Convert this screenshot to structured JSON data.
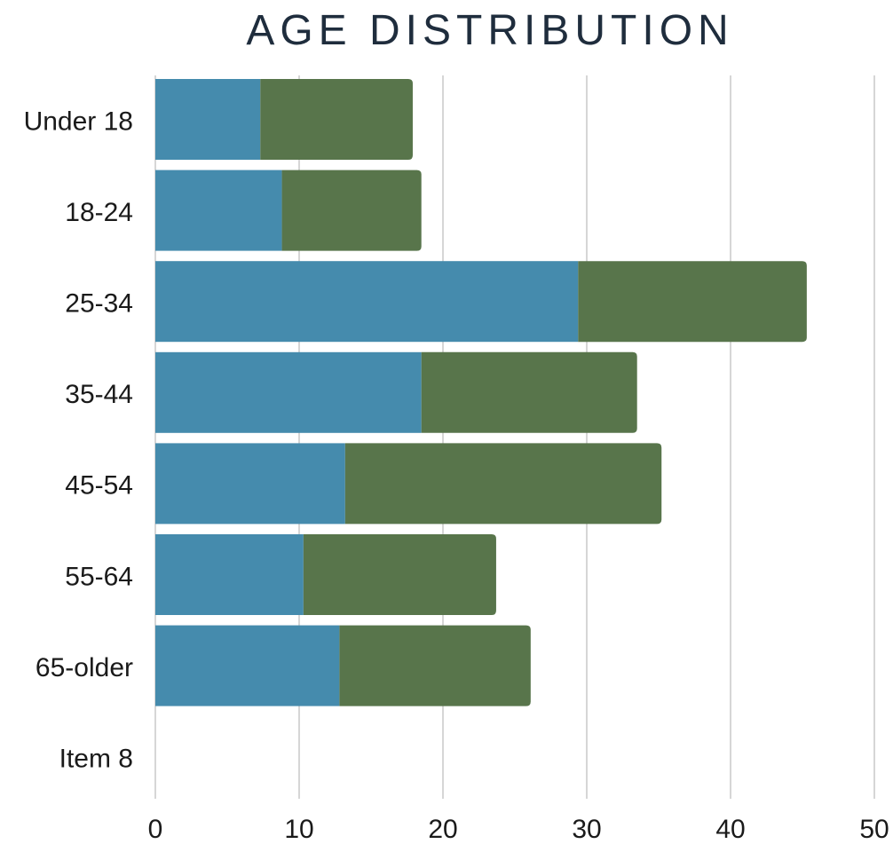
{
  "chart_data": {
    "type": "bar",
    "orientation": "horizontal",
    "stacked": true,
    "title": "AGE DISTRIBUTION",
    "xlabel": "",
    "ylabel": "",
    "categories": [
      "Under 18",
      "18-24",
      "25-34",
      "35-44",
      "45-54",
      "55-64",
      "65-older",
      "Item 8"
    ],
    "series": [
      {
        "color": "#458bad",
        "values": [
          7.3,
          8.8,
          29.4,
          18.5,
          13.2,
          10.3,
          12.8,
          0
        ]
      },
      {
        "color": "#58754b",
        "values": [
          10.6,
          9.7,
          15.9,
          15.0,
          22.0,
          13.4,
          13.3,
          0
        ]
      }
    ],
    "xlim": [
      0,
      50
    ],
    "xticks": [
      0,
      10,
      20,
      30,
      40,
      50
    ],
    "grid": true,
    "legend": "none"
  }
}
